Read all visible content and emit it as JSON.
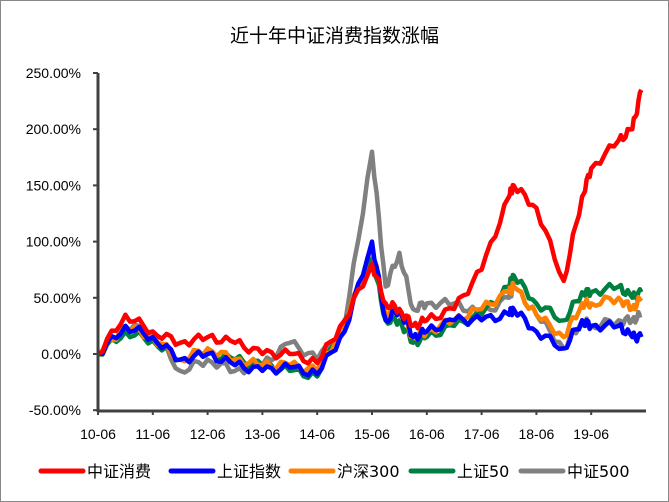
{
  "chart_data": {
    "type": "line",
    "title": "近十年中证消费指数涨幅",
    "xlabel": "",
    "ylabel": "",
    "ylim": [
      -50,
      250
    ],
    "yticks": [
      "250.00%",
      "200.00%",
      "150.00%",
      "100.00%",
      "50.00%",
      "0.00%",
      "-50.00%"
    ],
    "ytick_values": [
      250,
      200,
      150,
      100,
      50,
      0,
      -50
    ],
    "xticks": [
      "10-06",
      "11-06",
      "12-06",
      "13-06",
      "14-06",
      "15-06",
      "16-06",
      "17-06",
      "18-06",
      "19-06"
    ],
    "grid": false,
    "legend": "bottom",
    "x": [
      "10-06",
      "10-12",
      "11-06",
      "11-12",
      "12-06",
      "12-12",
      "13-06",
      "13-12",
      "14-06",
      "14-12",
      "15-06",
      "15-09",
      "15-12",
      "16-03",
      "16-06",
      "16-12",
      "17-06",
      "17-12",
      "18-01",
      "18-06",
      "18-12",
      "19-04",
      "19-06",
      "19-12",
      "20-03",
      "20-05"
    ],
    "series": [
      {
        "name": "中证消费",
        "color": "#ff0000",
        "values": [
          0,
          35,
          20,
          10,
          15,
          10,
          0,
          0,
          -8,
          30,
          80,
          45,
          40,
          25,
          30,
          40,
          75,
          140,
          150,
          130,
          65,
          140,
          165,
          190,
          200,
          235
        ]
      },
      {
        "name": "上证指数",
        "color": "#0000ff",
        "values": [
          0,
          25,
          15,
          -5,
          0,
          -10,
          -15,
          -12,
          -18,
          20,
          100,
          30,
          40,
          15,
          20,
          30,
          30,
          35,
          40,
          20,
          5,
          30,
          25,
          25,
          15,
          15
        ]
      },
      {
        "name": "沪深300",
        "color": "#ff8000",
        "values": [
          0,
          25,
          15,
          -5,
          5,
          -5,
          -10,
          -10,
          -15,
          25,
          95,
          35,
          40,
          15,
          20,
          30,
          40,
          55,
          60,
          35,
          15,
          45,
          45,
          50,
          40,
          50
        ]
      },
      {
        "name": "上证50",
        "color": "#008040",
        "values": [
          0,
          20,
          12,
          -5,
          0,
          -5,
          -10,
          -15,
          -20,
          30,
          85,
          30,
          30,
          10,
          15,
          25,
          35,
          60,
          70,
          45,
          30,
          55,
          55,
          60,
          50,
          55
        ]
      },
      {
        "name": "中证500",
        "color": "#808080",
        "values": [
          0,
          25,
          20,
          -15,
          -5,
          -15,
          -10,
          10,
          -5,
          25,
          180,
          60,
          90,
          40,
          45,
          45,
          35,
          50,
          60,
          35,
          5,
          30,
          25,
          30,
          30,
          35
        ]
      }
    ]
  }
}
